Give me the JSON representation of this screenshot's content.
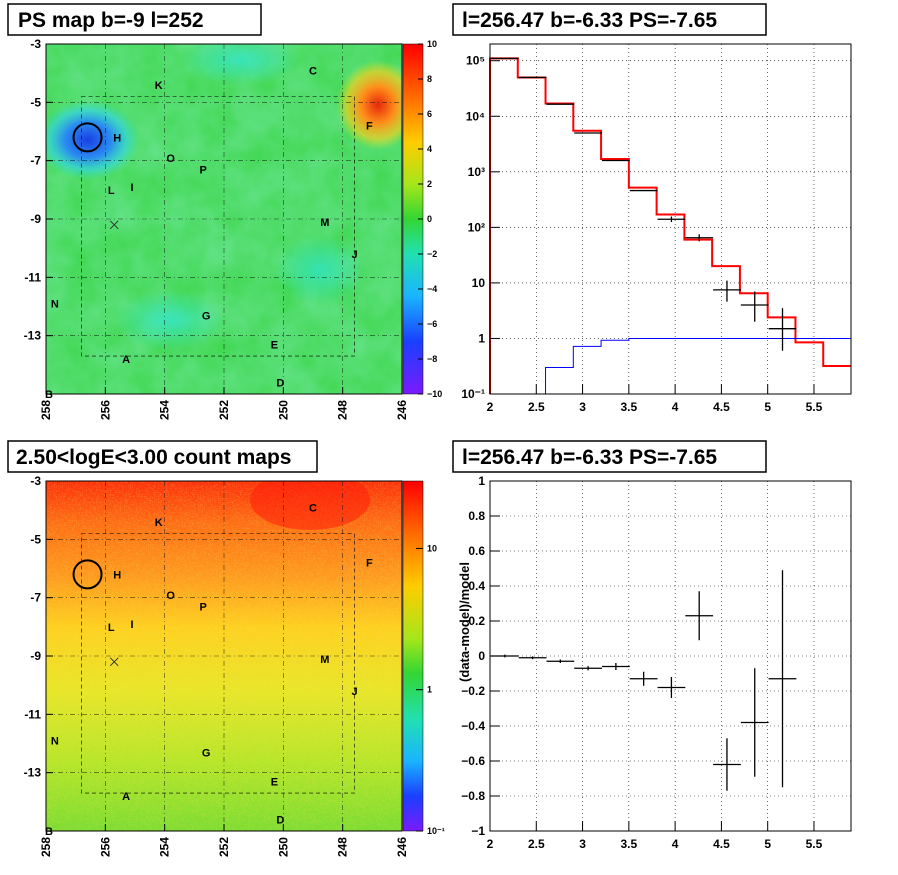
{
  "titles": {
    "ps_map": "PS map b=-9 l=252",
    "spectrum": "l=256.47 b=-6.33 PS=-7.65",
    "count_map": "2.50<logE<3.00 count maps",
    "residual": "l=256.47 b=-6.33 PS=-7.65"
  },
  "maps": {
    "x_ticks": [
      "258",
      "256",
      "254",
      "252",
      "250",
      "248",
      "246"
    ],
    "y_ticks": [
      "-3",
      "-5",
      "-7",
      "-9",
      "-11",
      "-13"
    ],
    "source_labels": [
      "C",
      "K",
      "F",
      "H",
      "O",
      "P",
      "L",
      "I",
      "M",
      "J",
      "N",
      "G",
      "E",
      "A",
      "D",
      "B"
    ],
    "ps_colorbar_ticks": [
      "10",
      "8",
      "6",
      "4",
      "2",
      "0",
      "−2",
      "−4",
      "−6",
      "−8",
      "−10"
    ],
    "count_colorbar_ticks": [
      "10",
      "1",
      "10⁻¹"
    ]
  },
  "chart_data": [
    {
      "type": "heatmap",
      "title": "PS map b=-9 l=252",
      "x_ticks": [
        258,
        256,
        254,
        252,
        250,
        248,
        246
      ],
      "y_ticks": [
        -3,
        -5,
        -7,
        -9,
        -11,
        -13
      ],
      "xlim": [
        258,
        246
      ],
      "ylim": [
        -15,
        -3
      ],
      "zlim": [
        -10,
        10
      ],
      "features": [
        {
          "l": 256.6,
          "b": -6.2,
          "value": -5,
          "note": "circled source"
        },
        {
          "l": 247.1,
          "b": -5.3,
          "value": 9
        }
      ],
      "labels": [
        "C",
        "K",
        "F",
        "H",
        "O",
        "P",
        "L",
        "I",
        "M",
        "J",
        "N",
        "G",
        "E",
        "A",
        "D",
        "B"
      ]
    },
    {
      "type": "line",
      "title": "l=256.47 b=-6.33 PS=-7.65",
      "log_y": true,
      "xlim": [
        2,
        5.9
      ],
      "ylim": [
        0.1,
        200000
      ],
      "x_ticks": [
        2,
        2.5,
        3,
        3.5,
        4,
        4.5,
        5,
        5.5
      ],
      "y_ticks": [
        "10⁻¹",
        "1",
        "10",
        "10²",
        "10³",
        "10⁴",
        "10⁵"
      ],
      "series": [
        {
          "style": "step",
          "color": "#ff0000",
          "edges": [
            2.0,
            2.3,
            2.6,
            2.9,
            3.2,
            3.5,
            3.8,
            4.1,
            4.4,
            4.7,
            5.0,
            5.3,
            5.6,
            5.9
          ],
          "values": [
            110000,
            50000,
            17000,
            5500,
            1700,
            520,
            170,
            60,
            20,
            6.5,
            2.4,
            0.85,
            0.32
          ]
        },
        {
          "style": "step",
          "color": "#0000ff",
          "edges": [
            2.6,
            2.9,
            3.2,
            3.5,
            5.9
          ],
          "values": [
            0.3,
            0.72,
            0.93,
            1.0
          ]
        },
        {
          "style": "errorbar",
          "color": "#000000",
          "points": [
            {
              "x": 2.16,
              "y": 110000,
              "dx": 0.15,
              "lo": 0,
              "hi": 0
            },
            {
              "x": 2.46,
              "y": 50000,
              "dx": 0.15,
              "lo": 0,
              "hi": 0
            },
            {
              "x": 2.76,
              "y": 16500,
              "dx": 0.15,
              "lo": 0,
              "hi": 0
            },
            {
              "x": 3.06,
              "y": 5000,
              "dx": 0.15,
              "lo": 0,
              "hi": 0
            },
            {
              "x": 3.36,
              "y": 1600,
              "dx": 0.15,
              "lo": 0,
              "hi": 0
            },
            {
              "x": 3.66,
              "y": 460,
              "dx": 0.15,
              "lo": 0,
              "hi": 0
            },
            {
              "x": 3.96,
              "y": 140,
              "dx": 0.15,
              "lo": 125,
              "hi": 157
            },
            {
              "x": 4.26,
              "y": 65,
              "dx": 0.15,
              "lo": 56,
              "hi": 75
            },
            {
              "x": 4.56,
              "y": 7.5,
              "dx": 0.15,
              "lo": 4.6,
              "hi": 11
            },
            {
              "x": 4.86,
              "y": 4.0,
              "dx": 0.15,
              "lo": 2.0,
              "hi": 7.0
            },
            {
              "x": 5.16,
              "y": 1.5,
              "dx": 0.15,
              "lo": 0.6,
              "hi": 3.5
            }
          ]
        }
      ]
    },
    {
      "type": "heatmap",
      "title": "2.50<logE<3.00 count maps",
      "x_ticks": [
        258,
        256,
        254,
        252,
        250,
        248,
        246
      ],
      "y_ticks": [
        -3,
        -5,
        -7,
        -9,
        -11,
        -13
      ],
      "xlim": [
        258,
        246
      ],
      "ylim": [
        -15,
        -3
      ],
      "z_scale": "log",
      "zlim": [
        0.1,
        30
      ],
      "trend": "counts highest along top edge (b=-3), decreasing toward b=-15",
      "labels": [
        "C",
        "K",
        "F",
        "H",
        "O",
        "P",
        "L",
        "I",
        "M",
        "J",
        "N",
        "G",
        "E",
        "A",
        "D",
        "B"
      ]
    },
    {
      "type": "scatter",
      "title": "l=256.47 b=-6.33 PS=-7.65",
      "ylabel": "(data-model)/model",
      "xlim": [
        2,
        5.9
      ],
      "ylim": [
        -1,
        1
      ],
      "x_ticks": [
        2,
        2.5,
        3,
        3.5,
        4,
        4.5,
        5,
        5.5
      ],
      "y_ticks": [
        -1,
        -0.8,
        -0.6,
        -0.4,
        -0.2,
        0,
        0.2,
        0.4,
        0.6,
        0.8,
        1
      ],
      "points": [
        {
          "x": 2.16,
          "y": 0.0,
          "dx": 0.15,
          "err": 0.008
        },
        {
          "x": 2.46,
          "y": -0.01,
          "dx": 0.15,
          "err": 0.008
        },
        {
          "x": 2.76,
          "y": -0.03,
          "dx": 0.15,
          "err": 0.01
        },
        {
          "x": 3.06,
          "y": -0.07,
          "dx": 0.15,
          "err": 0.012
        },
        {
          "x": 3.36,
          "y": -0.06,
          "dx": 0.15,
          "err": 0.02
        },
        {
          "x": 3.66,
          "y": -0.13,
          "dx": 0.15,
          "err": 0.04
        },
        {
          "x": 3.96,
          "y": -0.18,
          "dx": 0.15,
          "err": 0.06
        },
        {
          "x": 4.26,
          "y": 0.23,
          "dx": 0.15,
          "err": 0.14
        },
        {
          "x": 4.56,
          "y": -0.62,
          "dx": 0.15,
          "err": 0.15
        },
        {
          "x": 4.86,
          "y": -0.38,
          "dx": 0.15,
          "err": 0.31
        },
        {
          "x": 5.16,
          "y": -0.13,
          "dx": 0.15,
          "err": 0.62
        }
      ]
    }
  ]
}
